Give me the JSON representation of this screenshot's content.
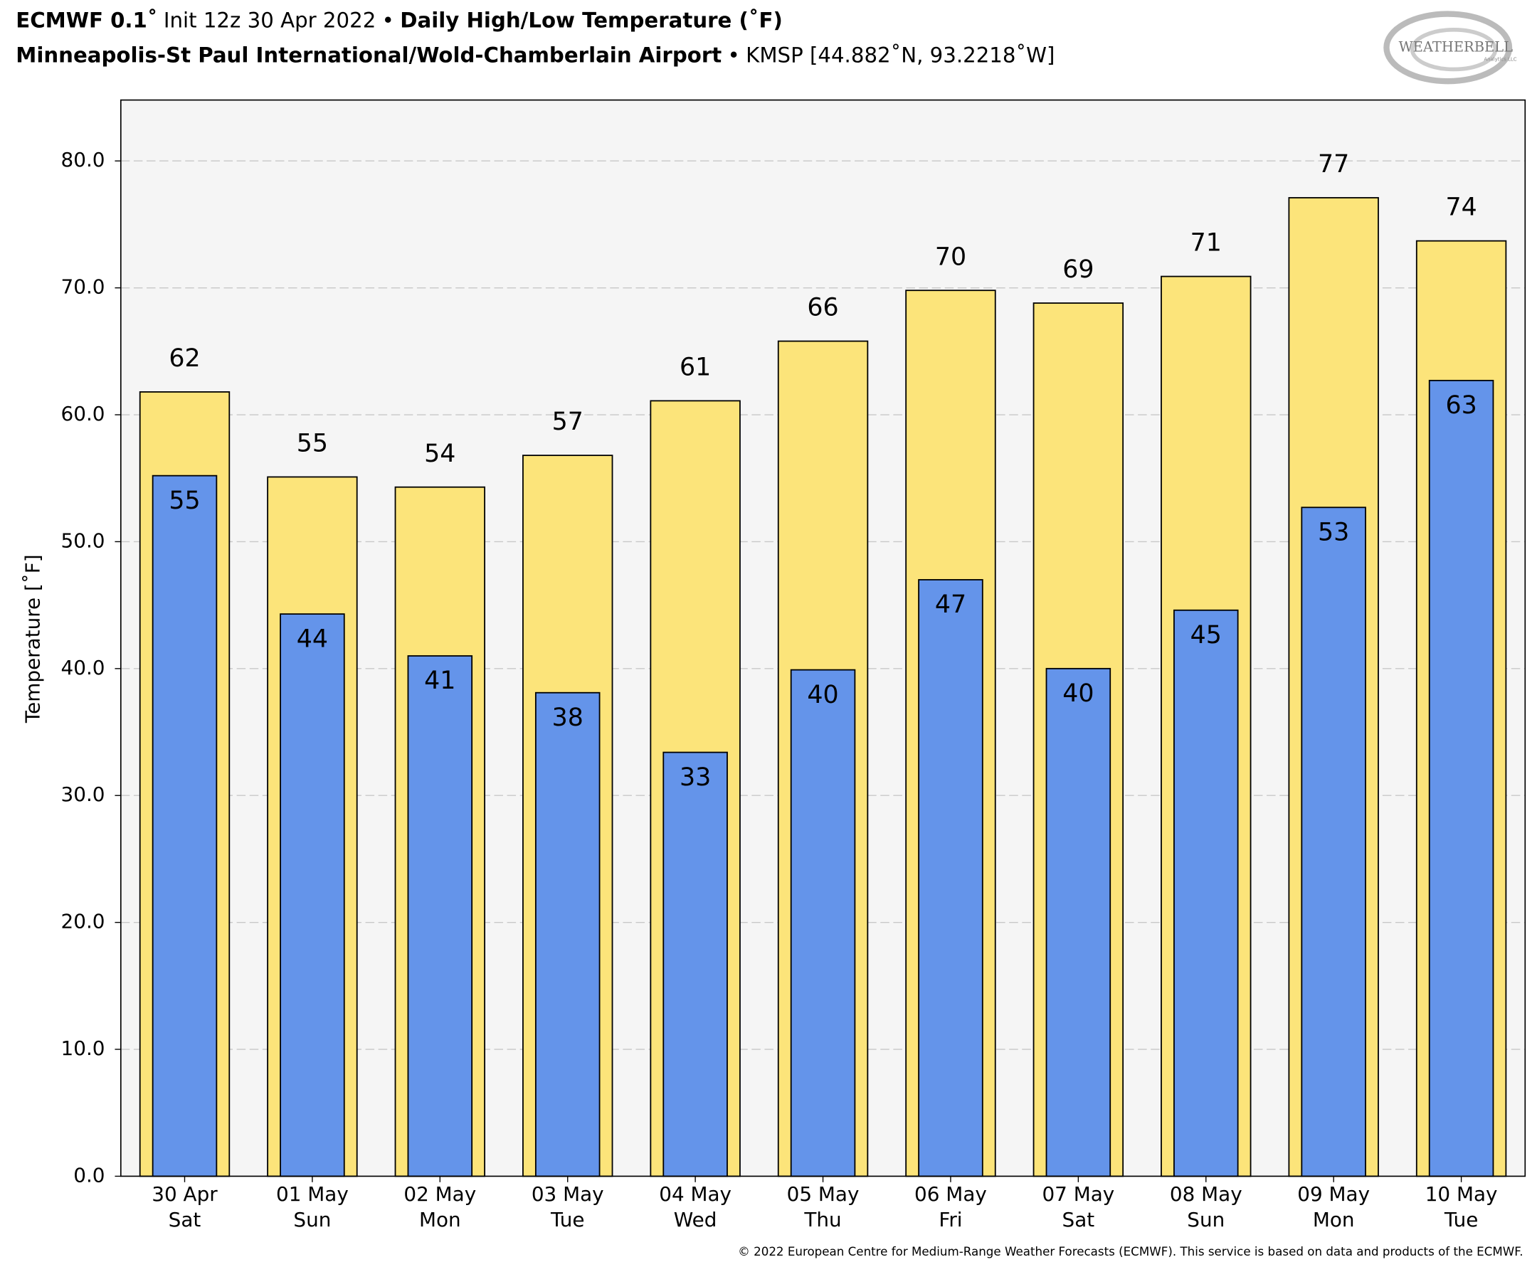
{
  "chart_data": {
    "type": "bar",
    "title": {
      "model": "ECMWF 0.1˚",
      "init": "Init 12z 30 Apr 2022",
      "separator": "•",
      "product": "Daily High/Low Temperature (˚F)"
    },
    "subtitle": {
      "station": "Minneapolis-St Paul International/Wold-Chamberlain Airport",
      "station_id": "KMSP [44.882˚N, 93.2218˚W]"
    },
    "logo": {
      "text": "WEATHERBELL",
      "sub": "Analytics LLC"
    },
    "footer": "© 2022 European Centre for Medium-Range Weather Forecasts (ECMWF). This service is based on data and products of the ECMWF.",
    "y_label": "Temperature [˚F]",
    "categories": [
      "30 Apr",
      "01 May",
      "02 May",
      "03 May",
      "04 May",
      "05 May",
      "06 May",
      "07 May",
      "08 May",
      "09 May",
      "10 May"
    ],
    "category_days": [
      "Sat",
      "Sun",
      "Mon",
      "Tue",
      "Wed",
      "Thu",
      "Fri",
      "Sat",
      "Sun",
      "Mon",
      "Tue"
    ],
    "series": [
      {
        "color": "#fce47a",
        "values": [
          61.8,
          55.1,
          54.3,
          56.8,
          61.1,
          65.8,
          69.8,
          68.8,
          70.9,
          77.1,
          73.7
        ],
        "value_labels": [
          "62",
          "55",
          "54",
          "57",
          "61",
          "66",
          "70",
          "69",
          "71",
          "77",
          "74"
        ]
      },
      {
        "color": "#6494ea",
        "values": [
          55.2,
          44.3,
          41.0,
          38.1,
          33.4,
          39.9,
          47.0,
          40.0,
          44.6,
          52.7,
          62.7
        ],
        "value_labels": [
          "55",
          "44",
          "41",
          "38",
          "33",
          "40",
          "47",
          "40",
          "45",
          "53",
          "63"
        ]
      }
    ],
    "ylim": [
      0,
      84.8
    ],
    "yticks": [
      {
        "value": 0,
        "label": "0.0"
      },
      {
        "value": 10,
        "label": "10.0"
      },
      {
        "value": 20,
        "label": "20.0"
      },
      {
        "value": 30,
        "label": "30.0"
      },
      {
        "value": 40,
        "label": "40.0"
      },
      {
        "value": 50,
        "label": "50.0"
      },
      {
        "value": 60,
        "label": "60.0"
      },
      {
        "value": 70,
        "label": "70.0"
      },
      {
        "value": 80,
        "label": "80.0"
      }
    ],
    "grid": true
  }
}
